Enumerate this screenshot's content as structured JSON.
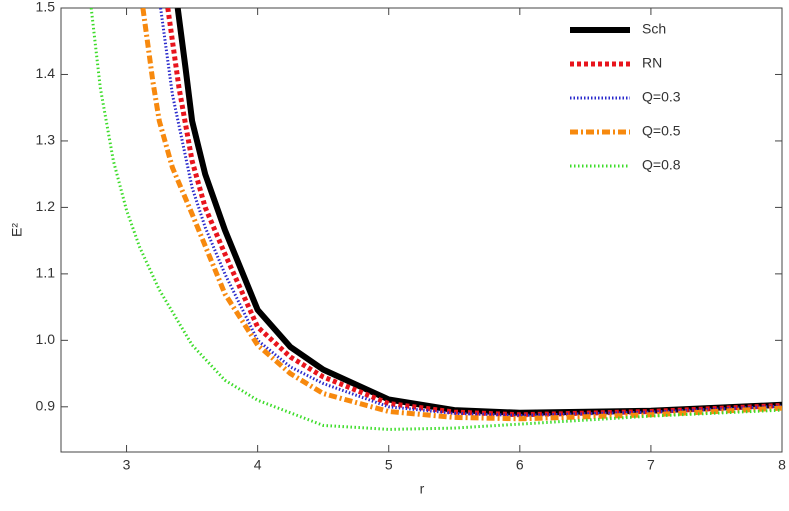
{
  "chart_data": {
    "type": "line",
    "x_label": "r",
    "y_label": "E²",
    "xlim": [
      2.5,
      8
    ],
    "xticks": [
      3,
      4,
      5,
      6,
      7,
      8
    ],
    "ylim": [
      0.832,
      1.5
    ],
    "yticks": [
      0.9,
      {
        "value": 1,
        "label": "1.0"
      },
      1.1,
      1.2,
      1.3,
      1.4,
      1.5
    ],
    "legend": "top-right",
    "series": [
      {
        "name": "Sch",
        "color": "#000000",
        "x": [
          3.39,
          3.45,
          3.5,
          3.6,
          3.75,
          4,
          4.25,
          4.5,
          5,
          5.5,
          6,
          7,
          8
        ],
        "values": [
          1.5,
          1.41,
          1.33,
          1.25,
          1.166,
          1.046,
          0.99,
          0.956,
          0.911,
          0.895,
          0.891,
          0.894,
          0.903
        ]
      },
      {
        "name": "RN",
        "color": "#e8141c",
        "x": [
          3.315,
          3.4,
          3.5,
          3.6,
          3.75,
          4,
          4.25,
          4.5,
          5,
          5.5,
          6,
          7,
          8
        ],
        "values": [
          1.5,
          1.38,
          1.27,
          1.2,
          1.13,
          1.02,
          0.975,
          0.945,
          0.905,
          0.892,
          0.888,
          0.893,
          0.902
        ]
      },
      {
        "name": "Q=0.3",
        "color": "#2a2acc",
        "x": [
          3.26,
          3.35,
          3.5,
          3.6,
          3.75,
          4,
          4.25,
          4.5,
          5,
          5.5,
          6,
          7,
          8
        ],
        "values": [
          1.5,
          1.37,
          1.23,
          1.17,
          1.1,
          1.0,
          0.96,
          0.935,
          0.9,
          0.89,
          0.887,
          0.892,
          0.901
        ]
      },
      {
        "name": "Q=0.5",
        "color": "#f7890e",
        "x": [
          3.125,
          3.2,
          3.25,
          3.35,
          3.5,
          3.75,
          4,
          4.25,
          4.5,
          5,
          5.5,
          6,
          7,
          8
        ],
        "values": [
          1.5,
          1.39,
          1.33,
          1.26,
          1.19,
          1.07,
          0.993,
          0.95,
          0.92,
          0.893,
          0.884,
          0.882,
          0.888,
          0.898
        ]
      },
      {
        "name": "Q=0.8",
        "color": "#3ddc2a",
        "x": [
          2.73,
          2.8,
          2.9,
          3,
          3.1,
          3.25,
          3.5,
          3.75,
          4,
          4.5,
          5,
          5.5,
          6,
          7,
          8
        ],
        "values": [
          1.5,
          1.38,
          1.27,
          1.196,
          1.14,
          1.076,
          0.993,
          0.94,
          0.91,
          0.872,
          0.866,
          0.868,
          0.874,
          0.886,
          0.895
        ]
      }
    ]
  }
}
